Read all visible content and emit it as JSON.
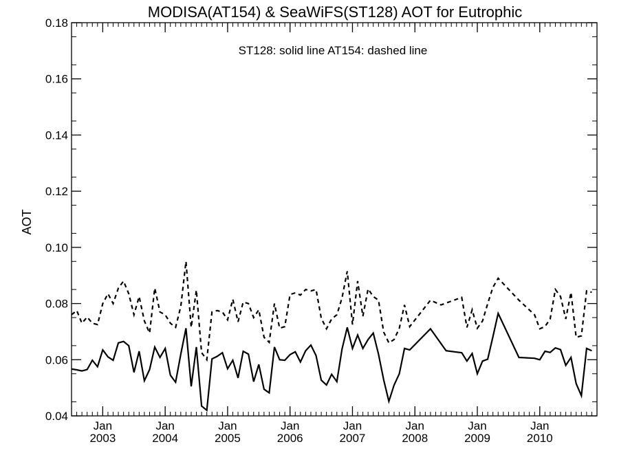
{
  "chart_data": {
    "type": "line",
    "title": "MODISA(AT154) & SeaWiFS(ST128)  AOT for Eutrophic",
    "annotation": "ST128: solid line   AT154: dashed line",
    "xlabel": "",
    "ylabel": "AOT",
    "xlim": [
      "2002-07-01",
      "2010-12-01"
    ],
    "ylim": [
      0.04,
      0.18
    ],
    "yticks": [
      "0.04",
      "0.06",
      "0.08",
      "0.10",
      "0.12",
      "0.14",
      "0.16",
      "0.18"
    ],
    "xticks": [
      {
        "month": "Jan",
        "year": "2003",
        "date": "2003-01"
      },
      {
        "month": "Jan",
        "year": "2004",
        "date": "2004-01"
      },
      {
        "month": "Jan",
        "year": "2005",
        "date": "2005-01"
      },
      {
        "month": "Jan",
        "year": "2006",
        "date": "2006-01"
      },
      {
        "month": "Jan",
        "year": "2007",
        "date": "2007-01"
      },
      {
        "month": "Jan",
        "year": "2008",
        "date": "2008-01"
      },
      {
        "month": "Jan",
        "year": "2009",
        "date": "2009-01"
      },
      {
        "month": "Jan",
        "year": "2010",
        "date": "2010-01"
      }
    ],
    "grid": false,
    "series": [
      {
        "name": "ST128",
        "style": "solid",
        "color": "#000000",
        "points": [
          [
            "2002-07",
            0.0567
          ],
          [
            "2002-08",
            0.0564
          ],
          [
            "2002-09",
            0.056
          ],
          [
            "2002-10",
            0.0565
          ],
          [
            "2002-11",
            0.0598
          ],
          [
            "2002-12",
            0.0575
          ],
          [
            "2003-01",
            0.0635
          ],
          [
            "2003-02",
            0.061
          ],
          [
            "2003-03",
            0.0598
          ],
          [
            "2003-04",
            0.066
          ],
          [
            "2003-05",
            0.0665
          ],
          [
            "2003-06",
            0.065
          ],
          [
            "2003-07",
            0.0555
          ],
          [
            "2003-08",
            0.063
          ],
          [
            "2003-09",
            0.0525
          ],
          [
            "2003-10",
            0.0565
          ],
          [
            "2003-11",
            0.0645
          ],
          [
            "2003-12",
            0.0608
          ],
          [
            "2004-01",
            0.064
          ],
          [
            "2004-02",
            0.0545
          ],
          [
            "2004-03",
            0.052
          ],
          [
            "2004-04",
            0.062
          ],
          [
            "2004-05",
            0.0712
          ],
          [
            "2004-06",
            0.0505
          ],
          [
            "2004-07",
            0.0645
          ],
          [
            "2004-08",
            0.0435
          ],
          [
            "2004-09",
            0.042
          ],
          [
            "2004-10",
            0.0603
          ],
          [
            "2004-11",
            0.0612
          ],
          [
            "2004-12",
            0.0625
          ],
          [
            "2005-01",
            0.0568
          ],
          [
            "2005-02",
            0.0598
          ],
          [
            "2005-03",
            0.0535
          ],
          [
            "2005-04",
            0.063
          ],
          [
            "2005-05",
            0.062
          ],
          [
            "2005-06",
            0.0522
          ],
          [
            "2005-07",
            0.0583
          ],
          [
            "2005-08",
            0.0495
          ],
          [
            "2005-09",
            0.0482
          ],
          [
            "2005-10",
            0.0645
          ],
          [
            "2005-11",
            0.06
          ],
          [
            "2005-12",
            0.0598
          ],
          [
            "2006-01",
            0.0618
          ],
          [
            "2006-02",
            0.0628
          ],
          [
            "2006-03",
            0.0592
          ],
          [
            "2006-04",
            0.0632
          ],
          [
            "2006-05",
            0.0652
          ],
          [
            "2006-06",
            0.0615
          ],
          [
            "2006-07",
            0.0527
          ],
          [
            "2006-08",
            0.051
          ],
          [
            "2006-09",
            0.0548
          ],
          [
            "2006-10",
            0.0522
          ],
          [
            "2006-11",
            0.0638
          ],
          [
            "2006-12",
            0.0715
          ],
          [
            "2007-01",
            0.064
          ],
          [
            "2007-02",
            0.0688
          ],
          [
            "2007-03",
            0.064
          ],
          [
            "2007-04",
            0.0672
          ],
          [
            "2007-05",
            0.0695
          ],
          [
            "2007-06",
            0.062
          ],
          [
            "2007-07",
            0.0528
          ],
          [
            "2007-08",
            0.0452
          ],
          [
            "2007-09",
            0.051
          ],
          [
            "2007-10",
            0.055
          ],
          [
            "2007-11",
            0.064
          ],
          [
            "2007-12",
            0.0635
          ],
          [
            "2008-04",
            0.071
          ],
          [
            "2008-07",
            0.0632
          ],
          [
            "2008-10",
            0.0625
          ],
          [
            "2008-11",
            0.0595
          ],
          [
            "2008-12",
            0.0622
          ],
          [
            "2009-01",
            0.055
          ],
          [
            "2009-02",
            0.0595
          ],
          [
            "2009-03",
            0.0602
          ],
          [
            "2009-04",
            0.0682
          ],
          [
            "2009-05",
            0.0765
          ],
          [
            "2009-09",
            0.0608
          ],
          [
            "2009-12",
            0.0605
          ],
          [
            "2010-01",
            0.06
          ],
          [
            "2010-02",
            0.063
          ],
          [
            "2010-03",
            0.0626
          ],
          [
            "2010-04",
            0.0642
          ],
          [
            "2010-05",
            0.0636
          ],
          [
            "2010-06",
            0.058
          ],
          [
            "2010-07",
            0.0608
          ],
          [
            "2010-08",
            0.0515
          ],
          [
            "2010-09",
            0.0472
          ],
          [
            "2010-10",
            0.064
          ],
          [
            "2010-11",
            0.0632
          ]
        ]
      },
      {
        "name": "AT154",
        "style": "dashed",
        "color": "#000000",
        "points": [
          [
            "2002-07",
            0.076
          ],
          [
            "2002-08",
            0.0775
          ],
          [
            "2002-09",
            0.073
          ],
          [
            "2002-10",
            0.0752
          ],
          [
            "2002-11",
            0.073
          ],
          [
            "2002-12",
            0.0725
          ],
          [
            "2003-01",
            0.08
          ],
          [
            "2003-02",
            0.0835
          ],
          [
            "2003-03",
            0.08
          ],
          [
            "2003-04",
            0.0855
          ],
          [
            "2003-05",
            0.088
          ],
          [
            "2003-06",
            0.0835
          ],
          [
            "2003-07",
            0.076
          ],
          [
            "2003-08",
            0.0825
          ],
          [
            "2003-09",
            0.0738
          ],
          [
            "2003-10",
            0.0695
          ],
          [
            "2003-11",
            0.0855
          ],
          [
            "2003-12",
            0.077
          ],
          [
            "2004-01",
            0.076
          ],
          [
            "2004-02",
            0.073
          ],
          [
            "2004-03",
            0.0715
          ],
          [
            "2004-04",
            0.079
          ],
          [
            "2004-05",
            0.095
          ],
          [
            "2004-06",
            0.0715
          ],
          [
            "2004-07",
            0.0848
          ],
          [
            "2004-08",
            0.0625
          ],
          [
            "2004-09",
            0.06
          ],
          [
            "2004-10",
            0.077
          ],
          [
            "2004-11",
            0.0775
          ],
          [
            "2004-12",
            0.077
          ],
          [
            "2005-01",
            0.0742
          ],
          [
            "2005-02",
            0.0815
          ],
          [
            "2005-03",
            0.0735
          ],
          [
            "2005-04",
            0.0805
          ],
          [
            "2005-05",
            0.08
          ],
          [
            "2005-06",
            0.075
          ],
          [
            "2005-07",
            0.0778
          ],
          [
            "2005-08",
            0.068
          ],
          [
            "2005-09",
            0.0662
          ],
          [
            "2005-10",
            0.08
          ],
          [
            "2005-11",
            0.0712
          ],
          [
            "2005-12",
            0.0718
          ],
          [
            "2006-01",
            0.0832
          ],
          [
            "2006-02",
            0.0838
          ],
          [
            "2006-03",
            0.083
          ],
          [
            "2006-04",
            0.085
          ],
          [
            "2006-05",
            0.0845
          ],
          [
            "2006-06",
            0.085
          ],
          [
            "2006-07",
            0.0748
          ],
          [
            "2006-08",
            0.071
          ],
          [
            "2006-09",
            0.0745
          ],
          [
            "2006-10",
            0.076
          ],
          [
            "2006-11",
            0.082
          ],
          [
            "2006-12",
            0.0915
          ],
          [
            "2007-01",
            0.0725
          ],
          [
            "2007-02",
            0.088
          ],
          [
            "2007-03",
            0.0755
          ],
          [
            "2007-04",
            0.0852
          ],
          [
            "2007-05",
            0.0825
          ],
          [
            "2007-06",
            0.0812
          ],
          [
            "2007-07",
            0.0698
          ],
          [
            "2007-08",
            0.066
          ],
          [
            "2007-09",
            0.0672
          ],
          [
            "2007-10",
            0.0712
          ],
          [
            "2007-11",
            0.0795
          ],
          [
            "2007-12",
            0.0718
          ],
          [
            "2008-04",
            0.0812
          ],
          [
            "2008-06",
            0.0795
          ],
          [
            "2008-10",
            0.0822
          ],
          [
            "2008-11",
            0.0715
          ],
          [
            "2008-12",
            0.0778
          ],
          [
            "2009-01",
            0.0712
          ],
          [
            "2009-02",
            0.0738
          ],
          [
            "2009-03",
            0.08
          ],
          [
            "2009-04",
            0.0858
          ],
          [
            "2009-05",
            0.089
          ],
          [
            "2009-09",
            0.0812
          ],
          [
            "2009-12",
            0.076
          ],
          [
            "2010-01",
            0.071
          ],
          [
            "2010-02",
            0.0718
          ],
          [
            "2010-03",
            0.0745
          ],
          [
            "2010-04",
            0.085
          ],
          [
            "2010-05",
            0.0825
          ],
          [
            "2010-06",
            0.0745
          ],
          [
            "2010-07",
            0.084
          ],
          [
            "2010-08",
            0.068
          ],
          [
            "2010-09",
            0.0685
          ],
          [
            "2010-10",
            0.0845
          ],
          [
            "2010-11",
            0.084
          ]
        ]
      }
    ]
  }
}
